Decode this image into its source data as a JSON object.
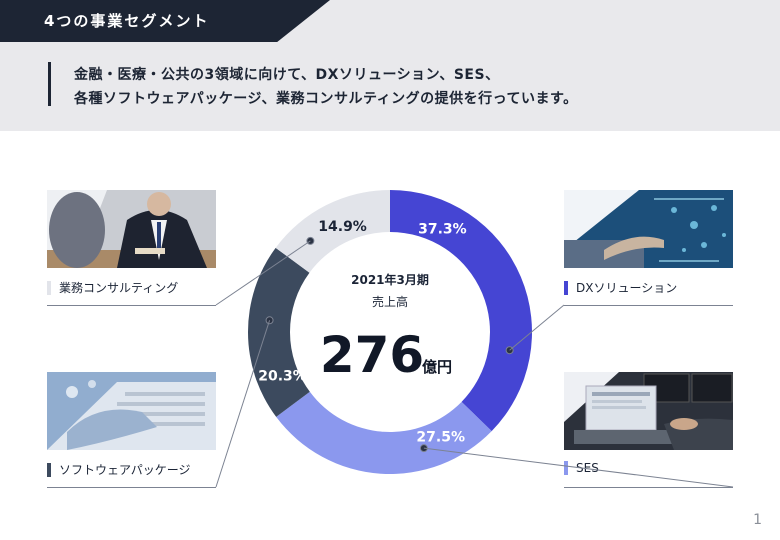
{
  "header": {
    "title": "4つの事業セグメント",
    "description_lines": [
      "金融・医療・公共の3領域に向けて、DXソリューション、SES、",
      "各種ソフトウェアパッケージ、業務コンサルティングの提供を行っています。"
    ]
  },
  "center": {
    "period": "2021年3月期",
    "label": "売上高",
    "value": "276",
    "unit": "億円"
  },
  "segments": {
    "consulting": {
      "label": "業務コンサルティング",
      "color": "#e2e4ea"
    },
    "software": {
      "label": "ソフトウェアパッケージ",
      "color": "#3c4a5e"
    },
    "dx": {
      "label": "DXソリューション",
      "color": "#4545d3"
    },
    "ses": {
      "label": "SES",
      "color": "#8b98ee"
    }
  },
  "chart_data": {
    "type": "pie",
    "style": "donut",
    "slices": [
      {
        "name": "DXソリューション",
        "value": 37.3,
        "label": "37.3%",
        "color": "#4545d3"
      },
      {
        "name": "SES",
        "value": 27.5,
        "label": "27.5%",
        "color": "#8b98ee"
      },
      {
        "name": "ソフトウェアパッケージ",
        "value": 20.3,
        "label": "20.3%",
        "color": "#3c4a5e"
      },
      {
        "name": "業務コンサルティング",
        "value": 14.9,
        "label": "14.9%",
        "color": "#e2e4ea"
      }
    ],
    "total_label": "276億円"
  },
  "footer": {
    "page_number": "1"
  }
}
